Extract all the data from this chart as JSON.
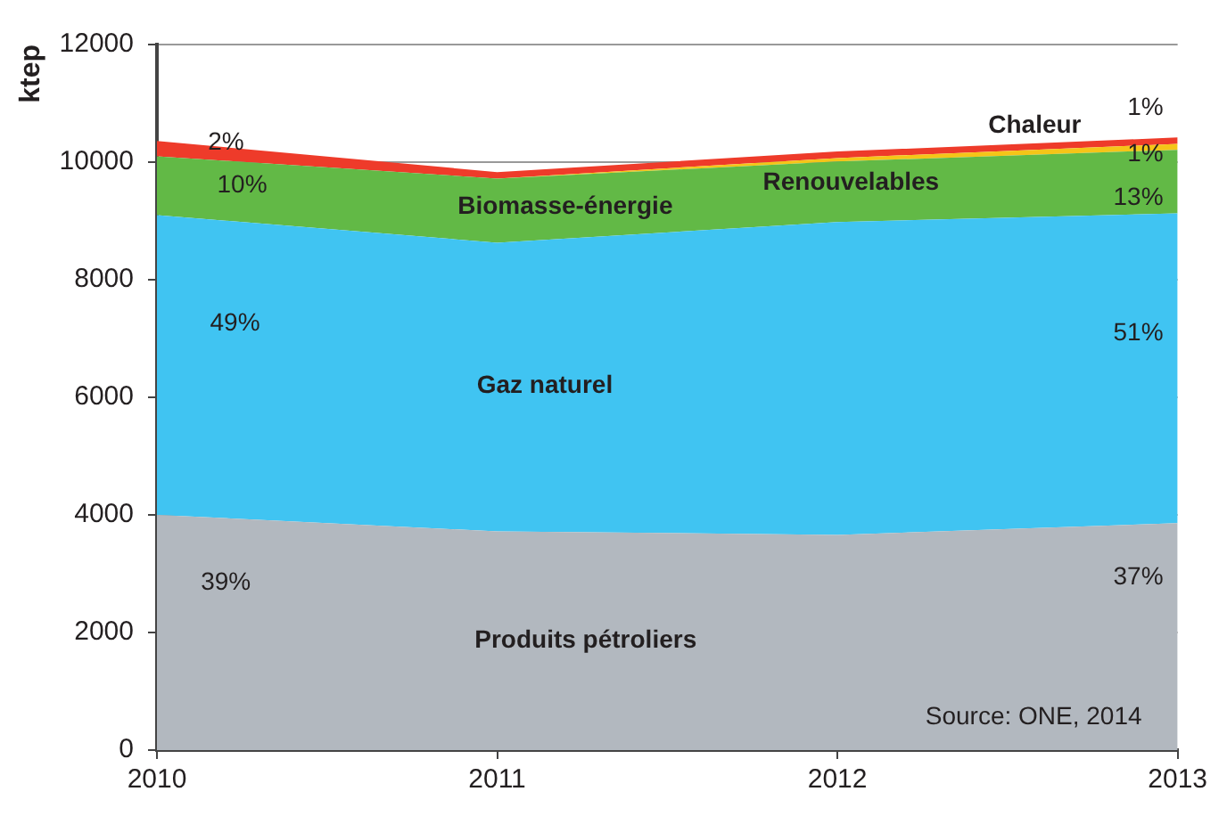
{
  "chart_data": {
    "type": "area",
    "stacked": true,
    "ylabel": "ktep",
    "x": [
      2010,
      2011,
      2012,
      2013
    ],
    "xlim": [
      2010,
      2013
    ],
    "xticks": [
      2010,
      2011,
      2012,
      2013
    ],
    "ylim": [
      0,
      12000
    ],
    "yticks": [
      0,
      2000,
      4000,
      6000,
      8000,
      10000,
      12000
    ],
    "grid": "y",
    "legend": false,
    "series": [
      {
        "name": "Produits pétroliers",
        "color": "#b2b8bf",
        "values": [
          4000,
          3720,
          3660,
          3860
        ]
      },
      {
        "name": "Gaz naturel",
        "color": "#40c4f2",
        "values": [
          5100,
          4910,
          5320,
          5270
        ]
      },
      {
        "name": "Biomasse-énergie",
        "color": "#62b946",
        "values": [
          1000,
          1090,
          1030,
          1080
        ]
      },
      {
        "name": "Renouvelables",
        "color": "#f5c518",
        "values": [
          0,
          0,
          60,
          100
        ]
      },
      {
        "name": "Chaleur",
        "color": "#ee3b2a",
        "values": [
          260,
          110,
          110,
          110
        ]
      }
    ],
    "annotations": [
      "2%",
      "10%",
      "49%",
      "39%",
      "1%",
      "1%",
      "13%",
      "51%",
      "37%",
      "Source: ONE, 2014"
    ]
  }
}
